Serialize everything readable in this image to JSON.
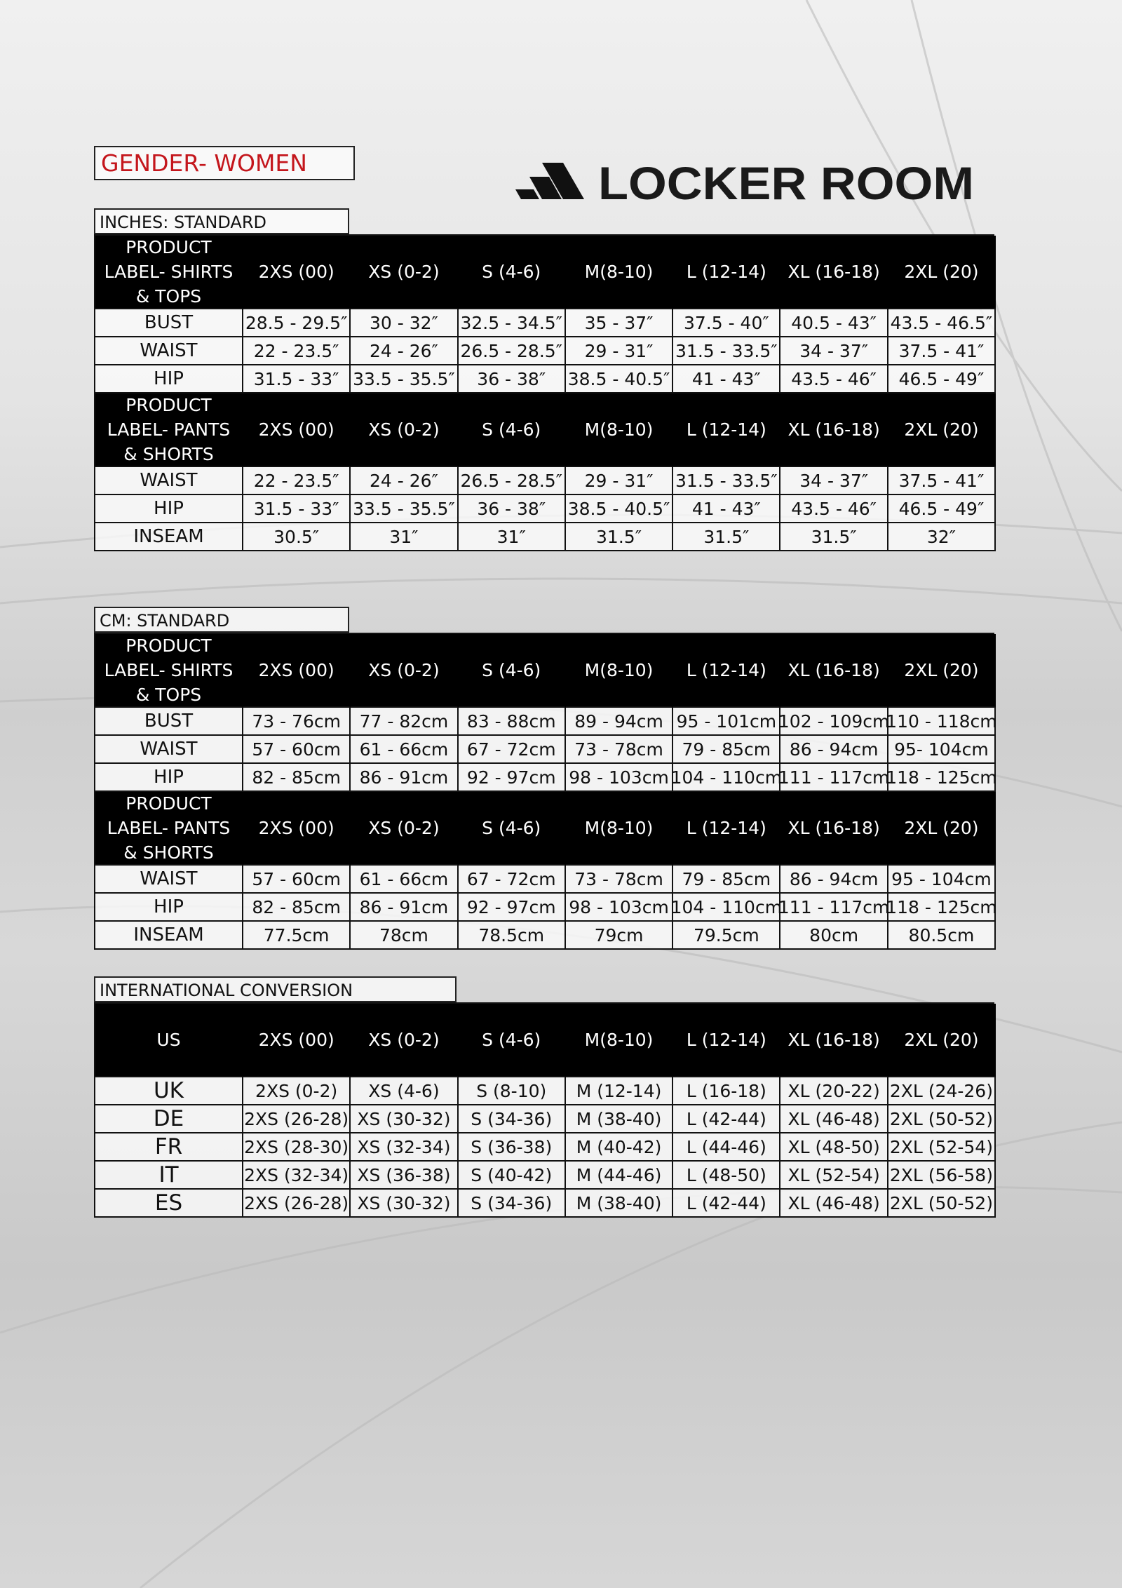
{
  "header": {
    "gender": "GENDER- WOMEN",
    "logo": "LOCKER ROOM"
  },
  "tables": [
    {
      "title": "INCHES: STANDARD",
      "sections": [
        {
          "label": [
            "PRODUCT",
            "LABEL- SHIRTS",
            "& TOPS"
          ],
          "sizes": [
            "2XS (00)",
            "XS (0-2)",
            "S (4-6)",
            "M(8-10)",
            "L (12-14)",
            "XL (16-18)",
            "2XL (20)"
          ],
          "rows": [
            {
              "name": "BUST",
              "values": [
                "28.5 - 29.5″",
                "30 - 32″",
                "32.5 - 34.5″",
                "35 - 37″",
                "37.5 - 40″",
                "40.5 - 43″",
                "43.5 - 46.5″"
              ]
            },
            {
              "name": "WAIST",
              "values": [
                "22 - 23.5″",
                "24 - 26″",
                "26.5 - 28.5″",
                "29 - 31″",
                "31.5 - 33.5″",
                "34 - 37″",
                "37.5 - 41″"
              ]
            },
            {
              "name": "HIP",
              "values": [
                "31.5 - 33″",
                "33.5 - 35.5″",
                "36 - 38″",
                "38.5 - 40.5″",
                "41 - 43″",
                "43.5 - 46″",
                "46.5 - 49″"
              ]
            }
          ]
        },
        {
          "label": [
            "PRODUCT",
            "LABEL- PANTS",
            "& SHORTS"
          ],
          "sizes": [
            "2XS (00)",
            "XS (0-2)",
            "S (4-6)",
            "M(8-10)",
            "L (12-14)",
            "XL (16-18)",
            "2XL (20)"
          ],
          "rows": [
            {
              "name": "WAIST",
              "values": [
                "22 - 23.5″",
                "24 - 26″",
                "26.5 - 28.5″",
                "29 - 31″",
                "31.5 - 33.5″",
                "34 - 37″",
                "37.5 - 41″"
              ]
            },
            {
              "name": "HIP",
              "values": [
                "31.5 - 33″",
                "33.5 - 35.5″",
                "36 - 38″",
                "38.5 - 40.5″",
                "41 - 43″",
                "43.5 - 46″",
                "46.5 - 49″"
              ]
            },
            {
              "name": "INSEAM",
              "values": [
                "30.5″",
                "31″",
                "31″",
                "31.5″",
                "31.5″",
                "31.5″",
                "32″"
              ]
            }
          ]
        }
      ]
    },
    {
      "title": "CM: STANDARD",
      "sections": [
        {
          "label": [
            "PRODUCT",
            "LABEL- SHIRTS",
            "& TOPS"
          ],
          "sizes": [
            "2XS (00)",
            "XS (0-2)",
            "S (4-6)",
            "M(8-10)",
            "L (12-14)",
            "XL (16-18)",
            "2XL (20)"
          ],
          "rows": [
            {
              "name": "BUST",
              "values": [
                "73 - 76cm",
                "77 - 82cm",
                "83 - 88cm",
                "89 - 94cm",
                "95 - 101cm",
                "102 - 109cm",
                "110 - 118cm"
              ]
            },
            {
              "name": "WAIST",
              "values": [
                "57 - 60cm",
                "61 - 66cm",
                "67 - 72cm",
                "73 - 78cm",
                "79 - 85cm",
                "86 - 94cm",
                "95- 104cm"
              ]
            },
            {
              "name": "HIP",
              "values": [
                "82 - 85cm",
                "86 - 91cm",
                "92 - 97cm",
                "98 - 103cm",
                "104 - 110cm",
                "111 - 117cm",
                "118 - 125cm"
              ]
            }
          ]
        },
        {
          "label": [
            "PRODUCT",
            "LABEL- PANTS",
            "& SHORTS"
          ],
          "sizes": [
            "2XS (00)",
            "XS (0-2)",
            "S (4-6)",
            "M(8-10)",
            "L (12-14)",
            "XL (16-18)",
            "2XL (20)"
          ],
          "rows": [
            {
              "name": "WAIST",
              "values": [
                "57 - 60cm",
                "61 - 66cm",
                "67 - 72cm",
                "73 - 78cm",
                "79 - 85cm",
                "86 - 94cm",
                "95 - 104cm"
              ]
            },
            {
              "name": "HIP",
              "values": [
                "82 - 85cm",
                "86 - 91cm",
                "92 - 97cm",
                "98 - 103cm",
                "104 - 110cm",
                "111 - 117cm",
                "118 - 125cm"
              ]
            },
            {
              "name": "INSEAM",
              "values": [
                "77.5cm",
                "78cm",
                "78.5cm",
                "79cm",
                "79.5cm",
                "80cm",
                "80.5cm"
              ]
            }
          ]
        }
      ]
    },
    {
      "title": "INTERNATIONAL CONVERSION",
      "sections": [
        {
          "label": [
            "US"
          ],
          "sizes": [
            "2XS (00)",
            "XS (0-2)",
            "S (4-6)",
            "M(8-10)",
            "L (12-14)",
            "XL (16-18)",
            "2XL (20)"
          ],
          "rows": [
            {
              "name": "UK",
              "values": [
                "2XS (0-2)",
                "XS (4-6)",
                "S (8-10)",
                "M (12-14)",
                "L (16-18)",
                "XL (20-22)",
                "2XL (24-26)"
              ]
            },
            {
              "name": "DE",
              "values": [
                "2XS (26-28)",
                "XS (30-32)",
                "S (34-36)",
                "M (38-40)",
                "L (42-44)",
                "XL (46-48)",
                "2XL (50-52)"
              ]
            },
            {
              "name": "FR",
              "values": [
                "2XS (28-30)",
                "XS (32-34)",
                "S (36-38)",
                "M (40-42)",
                "L (44-46)",
                "XL (48-50)",
                "2XL (52-54)"
              ]
            },
            {
              "name": "IT",
              "values": [
                "2XS (32-34)",
                "XS (36-38)",
                "S (40-42)",
                "M (44-46)",
                "L (48-50)",
                "XL (52-54)",
                "2XL (56-58)"
              ]
            },
            {
              "name": "ES",
              "values": [
                "2XS (26-28)",
                "XS (30-32)",
                "S (34-36)",
                "M (38-40)",
                "L (42-44)",
                "XL (46-48)",
                "2XL (50-52)"
              ]
            }
          ]
        }
      ]
    }
  ]
}
